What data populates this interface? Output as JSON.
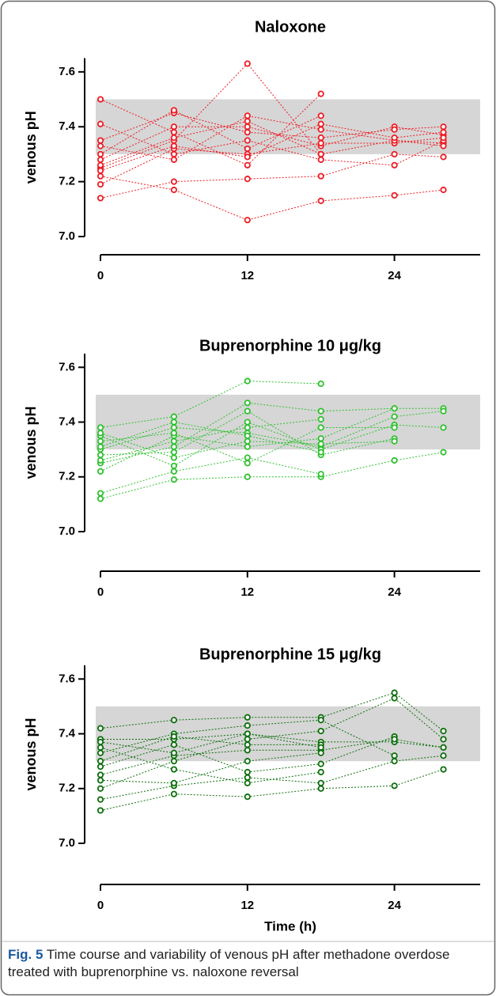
{
  "chart_data": [
    {
      "type": "line",
      "title": "Naloxone",
      "ylabel": "venous pH",
      "color": "#ee1c24",
      "x": [
        0,
        6,
        12,
        18,
        24,
        28
      ],
      "xlim": [
        0,
        31
      ],
      "xticks": [
        0,
        12,
        24
      ],
      "ylim": [
        7.0,
        7.65
      ],
      "yticks": [
        {
          "value": 7.0,
          "label": "7.0"
        },
        7.2,
        7.4,
        7.6
      ],
      "band": [
        7.3,
        7.5
      ],
      "series": [
        {
          "values": [
            7.22,
            7.17,
            7.06,
            7.13,
            7.15,
            7.17
          ]
        },
        {
          "values": [
            7.14,
            7.2,
            7.21,
            7.22,
            7.3,
            7.29
          ]
        },
        {
          "values": [
            7.5,
            7.38,
            7.26,
            7.52,
            null,
            null
          ]
        },
        {
          "values": [
            7.25,
            7.35,
            7.63,
            7.3,
            7.35,
            7.34
          ]
        },
        {
          "values": [
            7.28,
            7.4,
            7.4,
            7.33,
            7.4,
            7.37
          ]
        },
        {
          "values": [
            7.41,
            7.3,
            7.35,
            7.28,
            7.26,
            7.35
          ]
        },
        {
          "values": [
            7.35,
            7.45,
            7.38,
            7.36,
            7.39,
            7.4
          ]
        },
        {
          "values": [
            7.19,
            7.32,
            7.3,
            7.34,
            7.34,
            7.36
          ]
        },
        {
          "values": [
            7.3,
            7.46,
            7.32,
            7.44,
            null,
            null
          ]
        },
        {
          "values": [
            7.33,
            7.28,
            7.44,
            7.39,
            7.35,
            7.33
          ]
        },
        {
          "values": [
            7.26,
            7.36,
            7.42,
            7.3,
            null,
            null
          ]
        },
        {
          "values": [
            7.24,
            7.33,
            7.29,
            7.41,
            7.36,
            7.38
          ]
        }
      ]
    },
    {
      "type": "line",
      "title": "Buprenorphine 10 μg/kg",
      "ylabel": "venous pH",
      "color": "#2fc12f",
      "x": [
        0,
        6,
        12,
        18,
        24,
        28
      ],
      "xlim": [
        0,
        31
      ],
      "xticks": [
        0,
        12,
        24
      ],
      "ylim": [
        7.0,
        7.65
      ],
      "yticks": [
        {
          "value": 7.0,
          "label": "7.0"
        },
        7.2,
        7.4,
        7.6
      ],
      "band": [
        7.3,
        7.5
      ],
      "series": [
        {
          "values": [
            7.12,
            7.19,
            7.2,
            7.2,
            7.26,
            7.29
          ]
        },
        {
          "values": [
            7.14,
            7.22,
            7.27,
            7.21,
            null,
            null
          ]
        },
        {
          "values": [
            7.38,
            7.42,
            7.55,
            7.54,
            null,
            null
          ]
        },
        {
          "values": [
            7.25,
            7.31,
            7.47,
            7.44,
            7.45,
            7.45
          ]
        },
        {
          "values": [
            7.3,
            7.38,
            7.36,
            7.31,
            7.42,
            7.44
          ]
        },
        {
          "values": [
            7.35,
            7.24,
            7.4,
            7.3,
            7.39,
            7.38
          ]
        },
        {
          "values": [
            7.22,
            7.35,
            7.31,
            7.34,
            7.45,
            null
          ]
        },
        {
          "values": [
            7.28,
            7.29,
            7.44,
            7.28,
            7.34,
            null
          ]
        },
        {
          "values": [
            7.33,
            7.36,
            7.25,
            7.38,
            7.38,
            null
          ]
        },
        {
          "values": [
            7.36,
            7.27,
            7.33,
            7.32,
            7.33,
            null
          ]
        },
        {
          "values": [
            7.26,
            7.33,
            7.38,
            7.41,
            null,
            null
          ]
        },
        {
          "values": [
            7.31,
            7.4,
            7.35,
            7.29,
            null,
            null
          ]
        }
      ]
    },
    {
      "type": "line",
      "title": "Buprenorphine 15 μg/kg",
      "ylabel": "venous pH",
      "xlabel": "Time (h)",
      "color": "#0b6e0b",
      "x": [
        0,
        6,
        12,
        18,
        24,
        28
      ],
      "xlim": [
        0,
        31
      ],
      "xticks": [
        0,
        12,
        24
      ],
      "ylim": [
        7.0,
        7.65
      ],
      "yticks": [
        {
          "value": 7.0,
          "label": "7.0"
        },
        7.2,
        7.4,
        7.6
      ],
      "band": [
        7.3,
        7.5
      ],
      "series": [
        {
          "values": [
            7.12,
            7.18,
            7.17,
            7.2,
            7.21,
            7.27
          ]
        },
        {
          "values": [
            7.16,
            7.21,
            7.24,
            7.22,
            7.3,
            7.32
          ]
        },
        {
          "values": [
            7.42,
            7.45,
            7.46,
            7.46,
            7.55,
            7.41
          ]
        },
        {
          "values": [
            7.2,
            7.3,
            7.38,
            7.41,
            7.53,
            7.38
          ]
        },
        {
          "values": [
            7.38,
            7.38,
            7.4,
            7.37,
            7.37,
            7.35
          ]
        },
        {
          "values": [
            7.28,
            7.36,
            7.26,
            7.29,
            7.39,
            null
          ]
        },
        {
          "values": [
            7.33,
            7.4,
            7.43,
            7.45,
            7.32,
            null
          ]
        },
        {
          "values": [
            7.25,
            7.32,
            7.34,
            7.34,
            7.38,
            7.35
          ]
        },
        {
          "values": [
            7.35,
            7.27,
            7.22,
            7.26,
            null,
            null
          ]
        },
        {
          "values": [
            7.3,
            7.39,
            7.36,
            7.36,
            null,
            null
          ]
        },
        {
          "values": [
            7.23,
            7.22,
            7.3,
            7.33,
            null,
            null
          ]
        },
        {
          "values": [
            7.37,
            7.33,
            7.4,
            7.35,
            null,
            null
          ]
        }
      ]
    }
  ],
  "caption": {
    "label": "Fig. 5",
    "text": "Time course and variability of venous pH after methadone overdose treated with buprenorphine vs. naloxone reversal"
  }
}
